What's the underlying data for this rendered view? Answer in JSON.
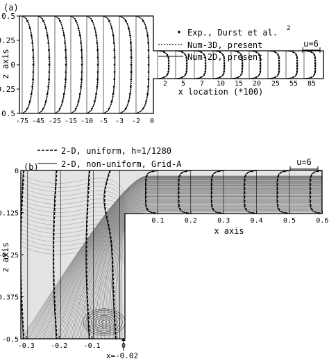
{
  "chart_data": [
    {
      "panel": "(a)",
      "type": "line",
      "xlabel": "x location (*100)",
      "ylabel": "z axis",
      "y_ticks": [
        "0.5",
        "0.25",
        "0",
        "-0.25",
        "-0.5"
      ],
      "y_tick_values": [
        0.5,
        0.25,
        0,
        -0.25,
        -0.5
      ],
      "upstream_stations": [
        "-75",
        "-45",
        "-25",
        "-15",
        "-10",
        "-5",
        "-3",
        "-2",
        "0"
      ],
      "downstream_stations": [
        "2",
        "5",
        "7",
        "10",
        "15",
        "20",
        "25",
        "55",
        "85"
      ],
      "legend": [
        {
          "label": "Exp., Durst et al.",
          "superscript": "2",
          "marker": "dot"
        },
        {
          "label": "Num-3D, present",
          "marker": "dotted"
        },
        {
          "label": "Num-2D, present",
          "marker": "solid"
        }
      ],
      "scale_label": "u=6",
      "series": [
        {
          "name": "Exp., Durst et al.",
          "style": "dots"
        },
        {
          "name": "Num-3D, present",
          "style": "dotted"
        },
        {
          "name": "Num-2D, present",
          "style": "solid"
        }
      ]
    },
    {
      "panel": "(b)",
      "type": "line",
      "xlabel": "x axis",
      "ylabel": "z axis",
      "x_ticks": [
        "-0.3",
        "-0.2",
        "-0.1",
        "0",
        "0.1",
        "0.2",
        "0.3",
        "0.4",
        "0.5",
        "0.6"
      ],
      "x_tick_values": [
        -0.3,
        -0.2,
        -0.1,
        0,
        0.1,
        0.2,
        0.3,
        0.4,
        0.5,
        0.6
      ],
      "y_ticks": [
        "0",
        "-0.125",
        "-0.25",
        "-0.375",
        "-0.5"
      ],
      "y_tick_values": [
        0,
        -0.125,
        -0.25,
        -0.375,
        -0.5
      ],
      "xlim": [
        -0.3,
        0.6
      ],
      "ylim": [
        -0.5,
        0
      ],
      "legend": [
        {
          "label": "2-D, uniform, h=1/1280",
          "marker": "dashed"
        },
        {
          "label": "2-D, non-uniform, Grid-A",
          "marker": "solid"
        }
      ],
      "scale_label": "u=6",
      "annotation": "x=-0.02",
      "profile_stations_x": [
        -0.3,
        -0.2,
        -0.1,
        -0.02,
        0.1,
        0.2,
        0.3,
        0.4,
        0.5,
        0.6
      ],
      "series": [
        {
          "name": "2-D, uniform, h=1/1280",
          "style": "dashed"
        },
        {
          "name": "2-D, non-uniform, Grid-A",
          "style": "solid"
        }
      ]
    }
  ]
}
